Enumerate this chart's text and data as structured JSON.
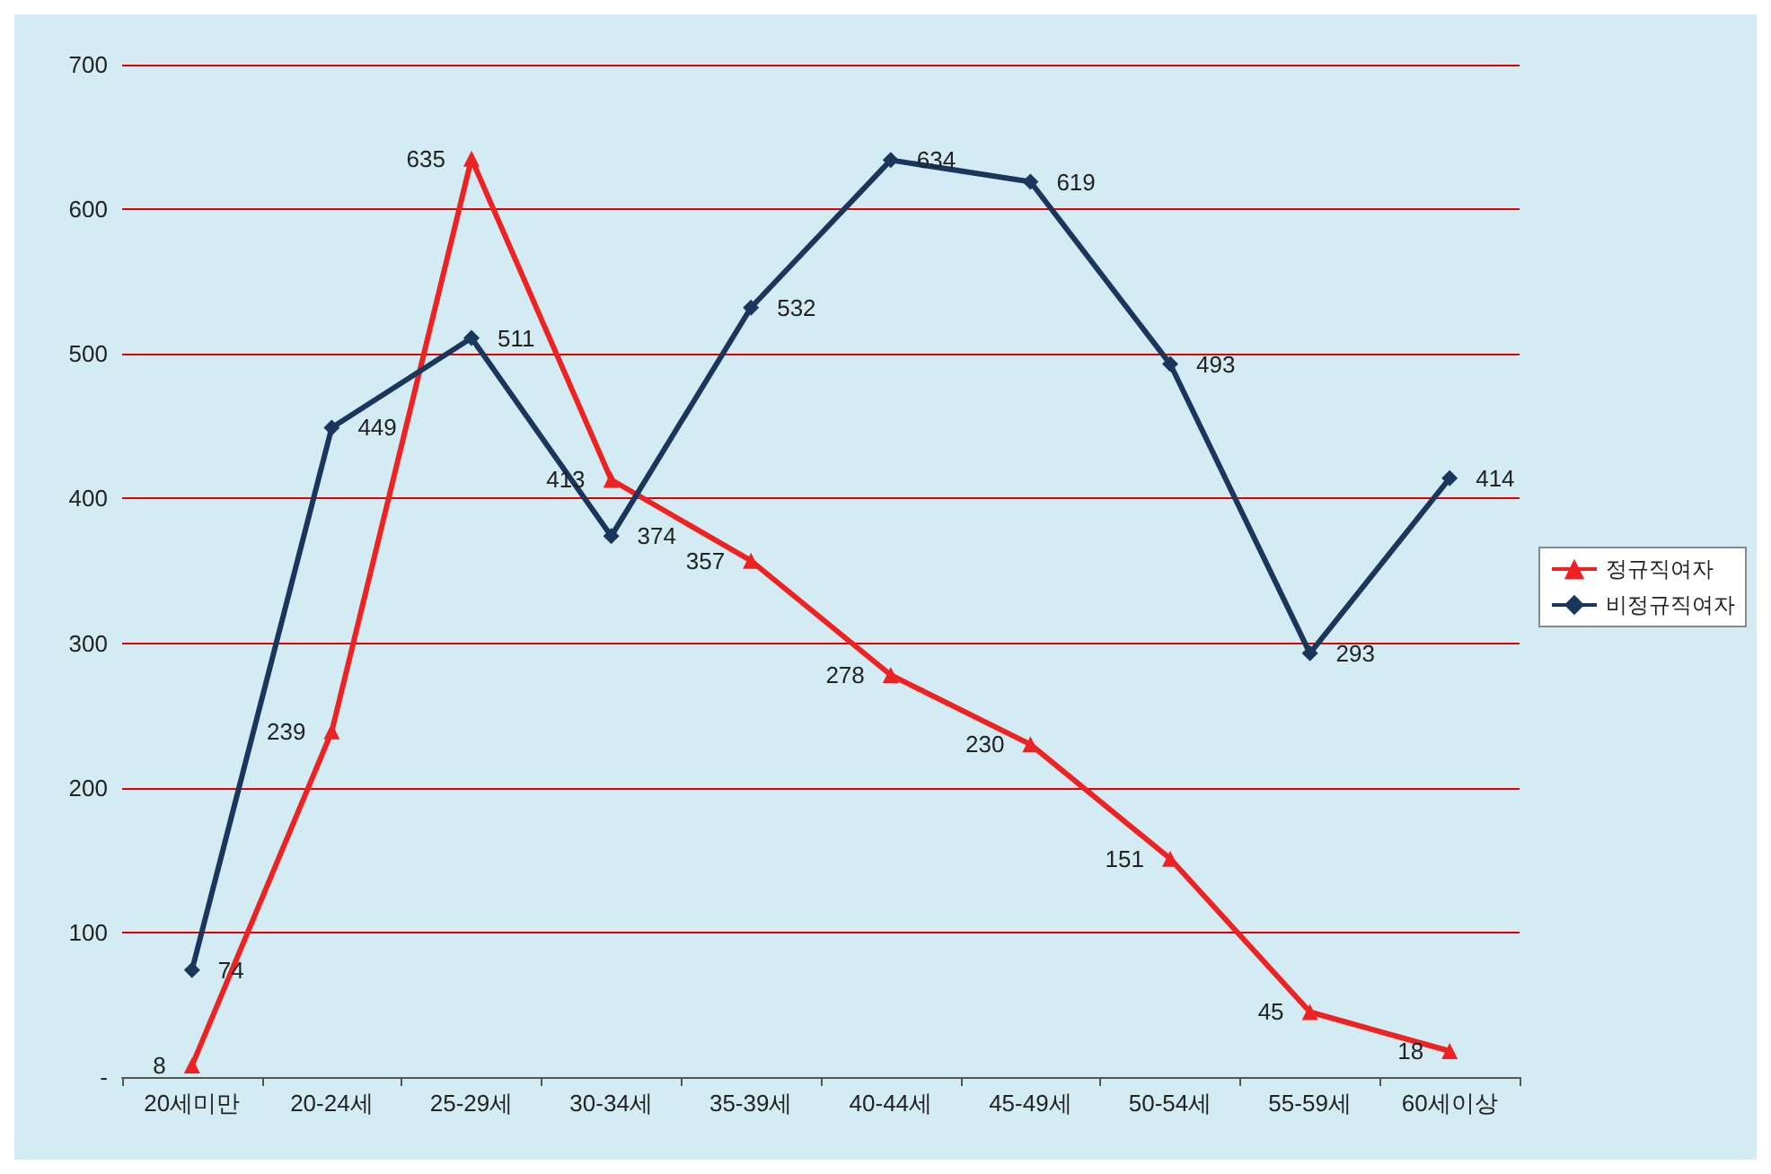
{
  "chart_data": {
    "type": "line",
    "categories": [
      "20세미만",
      "20-24세",
      "25-29세",
      "30-34세",
      "35-39세",
      "40-44세",
      "45-49세",
      "50-54세",
      "55-59세",
      "60세이상"
    ],
    "series": [
      {
        "name": "정규직여자",
        "color": "#ee2222",
        "marker": "triangle",
        "values": [
          8,
          239,
          635,
          413,
          357,
          278,
          230,
          151,
          45,
          18
        ]
      },
      {
        "name": "비정규직여자",
        "color": "#1b365d",
        "marker": "diamond",
        "values": [
          74,
          449,
          511,
          374,
          532,
          634,
          619,
          493,
          293,
          414
        ]
      }
    ],
    "ylim": [
      0,
      700
    ],
    "yticks": [
      {
        "value": 0,
        "label": "-"
      },
      100,
      200,
      300,
      400,
      500,
      600,
      700
    ],
    "grid": "y",
    "legend": "right",
    "data_labels": true
  }
}
